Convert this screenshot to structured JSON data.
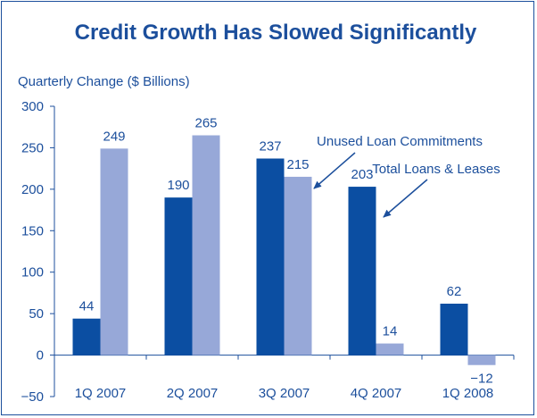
{
  "chart_data": {
    "type": "bar",
    "title": "Credit Growth Has Slowed Significantly",
    "ylabel": "Quarterly Change ($ Billions)",
    "xlabel": "",
    "categories": [
      "1Q 2007",
      "2Q 2007",
      "3Q 2007",
      "4Q 2007",
      "1Q 2008"
    ],
    "series": [
      {
        "name": "Total Loans & Leases",
        "values": [
          44,
          190,
          237,
          203,
          62
        ],
        "color": "#0b4ea2"
      },
      {
        "name": "Unused Loan Commitments",
        "values": [
          249,
          265,
          215,
          14,
          -12
        ],
        "color": "#97a8d8"
      }
    ],
    "value_labels": {
      "series_0": [
        "44",
        "190",
        "237",
        "203",
        "62"
      ],
      "series_1": [
        "249",
        "265",
        "215",
        "14",
        "−12"
      ]
    },
    "ylim": [
      -50,
      300
    ],
    "yticks": [
      -50,
      0,
      50,
      100,
      150,
      200,
      250,
      300
    ],
    "ytick_labels": [
      "−50",
      "0",
      "50",
      "100",
      "150",
      "200",
      "250",
      "300"
    ],
    "grid": false,
    "legend": "annotations-with-arrows",
    "text_color": "#1c4f9c"
  }
}
